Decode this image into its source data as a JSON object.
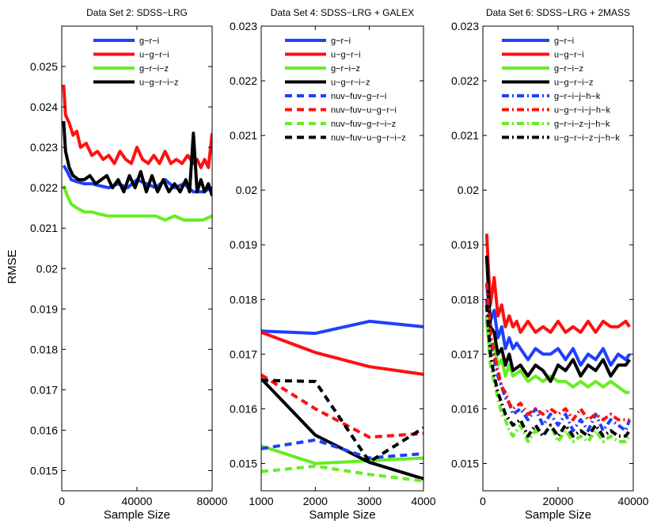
{
  "figure": {
    "ylabel": "RMSE"
  },
  "chart_data": [
    {
      "type": "line",
      "title": "Data Set 2: SDSS−LRG",
      "xlabel": "Sample Size",
      "ylabel": "RMSE",
      "xlim": [
        0,
        80000
      ],
      "ylim": [
        0.0145,
        0.026
      ],
      "xticks": [
        0,
        40000,
        80000
      ],
      "xtick_labels": [
        "0",
        "40000",
        "80000"
      ],
      "yticks": [
        0.015,
        0.016,
        0.017,
        0.018,
        0.019,
        0.02,
        0.021,
        0.022,
        0.023,
        0.024,
        0.025
      ],
      "ytick_labels": [
        "0.015",
        "0.016",
        "0.017",
        "0.018",
        "0.019",
        "0.02",
        "0.021",
        "0.022",
        "0.023",
        "0.024",
        "0.025"
      ],
      "legend_position": "top-right",
      "series": [
        {
          "name": "g−r−i",
          "color": "#1f3fff",
          "dash": "solid",
          "x": [
            1000,
            3000,
            5000,
            8000,
            12000,
            16000,
            20000,
            25000,
            30000,
            35000,
            40000,
            45000,
            50000,
            55000,
            60000,
            65000,
            70000,
            75000,
            80000
          ],
          "y": [
            0.02255,
            0.0224,
            0.0222,
            0.02215,
            0.0221,
            0.0221,
            0.02205,
            0.022,
            0.0221,
            0.022,
            0.0222,
            0.0221,
            0.022,
            0.0222,
            0.022,
            0.0221,
            0.0219,
            0.0219,
            0.022
          ]
        },
        {
          "name": "u−g−r−i",
          "color": "#ff1010",
          "dash": "solid",
          "x": [
            1000,
            2000,
            4000,
            6000,
            8000,
            10000,
            13000,
            16000,
            19000,
            22000,
            25000,
            28000,
            31000,
            34000,
            37000,
            40000,
            43000,
            46000,
            49000,
            52000,
            55000,
            58000,
            61000,
            64000,
            67000,
            70000,
            72000,
            74000,
            76000,
            78000,
            80000
          ],
          "y": [
            0.02455,
            0.0238,
            0.0236,
            0.0233,
            0.0234,
            0.023,
            0.0231,
            0.0228,
            0.0229,
            0.0227,
            0.0228,
            0.0226,
            0.0229,
            0.0227,
            0.0226,
            0.023,
            0.0227,
            0.0226,
            0.0228,
            0.0226,
            0.0229,
            0.0226,
            0.0227,
            0.0226,
            0.0228,
            0.0226,
            0.0227,
            0.0225,
            0.0227,
            0.0225,
            0.02335
          ]
        },
        {
          "name": "g−r−i−z",
          "color": "#66ee22",
          "dash": "solid",
          "x": [
            1000,
            3000,
            5000,
            8000,
            12000,
            16000,
            20000,
            25000,
            30000,
            35000,
            40000,
            45000,
            50000,
            55000,
            60000,
            65000,
            70000,
            75000,
            80000
          ],
          "y": [
            0.02205,
            0.0218,
            0.0216,
            0.0215,
            0.0214,
            0.0214,
            0.02135,
            0.0213,
            0.0213,
            0.0213,
            0.0213,
            0.0213,
            0.0213,
            0.0212,
            0.0213,
            0.0212,
            0.0212,
            0.0212,
            0.0213
          ]
        },
        {
          "name": "u−g−r−i−z",
          "color": "#000000",
          "dash": "solid",
          "x": [
            1000,
            2000,
            4000,
            6000,
            9000,
            12000,
            15000,
            18000,
            21000,
            24000,
            27000,
            30000,
            33000,
            36000,
            39000,
            42000,
            45000,
            48000,
            51000,
            54000,
            57000,
            60000,
            63000,
            66000,
            68000,
            70000,
            72000,
            74000,
            76000,
            78000,
            80000
          ],
          "y": [
            0.02365,
            0.0229,
            0.0225,
            0.0223,
            0.0222,
            0.0222,
            0.0223,
            0.0221,
            0.0222,
            0.0223,
            0.022,
            0.0222,
            0.0219,
            0.0223,
            0.022,
            0.0224,
            0.0219,
            0.0223,
            0.0219,
            0.0222,
            0.0219,
            0.0221,
            0.0219,
            0.0222,
            0.0219,
            0.02335,
            0.0219,
            0.0222,
            0.0219,
            0.0221,
            0.0218
          ]
        }
      ]
    },
    {
      "type": "line",
      "title": "Data Set 4: SDSS−LRG + GALEX",
      "xlabel": "Sample Size",
      "ylabel": "",
      "xlim": [
        1000,
        4000
      ],
      "ylim": [
        0.0145,
        0.023
      ],
      "xticks": [
        1000,
        2000,
        3000,
        4000
      ],
      "xtick_labels": [
        "1000",
        "2000",
        "3000",
        "4000"
      ],
      "yticks": [
        0.015,
        0.016,
        0.017,
        0.018,
        0.019,
        0.02,
        0.021,
        0.022,
        0.023
      ],
      "ytick_labels": [
        "0.015",
        "0.016",
        "0.017",
        "0.018",
        "0.019",
        "0.02",
        "0.021",
        "0.022",
        "0.023"
      ],
      "legend_position": "top-right",
      "series": [
        {
          "name": "g−r−i",
          "color": "#1f3fff",
          "dash": "solid",
          "x": [
            1000,
            2000,
            3000,
            4000
          ],
          "y": [
            0.01742,
            0.01738,
            0.0176,
            0.0175
          ]
        },
        {
          "name": "u−g−r−i",
          "color": "#ff1010",
          "dash": "solid",
          "x": [
            1000,
            2000,
            3000,
            4000
          ],
          "y": [
            0.0174,
            0.01703,
            0.01677,
            0.01663
          ]
        },
        {
          "name": "g−r−i−z",
          "color": "#66ee22",
          "dash": "solid",
          "x": [
            1000,
            2000,
            3000,
            4000
          ],
          "y": [
            0.01532,
            0.015,
            0.01505,
            0.0151
          ]
        },
        {
          "name": "u−g−r−i−z",
          "color": "#000000",
          "dash": "solid",
          "x": [
            1000,
            2000,
            3000,
            4000
          ],
          "y": [
            0.01655,
            0.01552,
            0.01502,
            0.01472
          ]
        },
        {
          "name": "nuv−fuv−g−r−i",
          "color": "#1f3fff",
          "dash": "dashed",
          "x": [
            1000,
            2000,
            3000,
            4000
          ],
          "y": [
            0.01527,
            0.01543,
            0.0151,
            0.01518
          ]
        },
        {
          "name": "nuv−fuv−u−g−r−i",
          "color": "#ff1010",
          "dash": "dashed",
          "x": [
            1000,
            2000,
            3000,
            4000
          ],
          "y": [
            0.01662,
            0.016,
            0.01548,
            0.01555
          ]
        },
        {
          "name": "nuv−fuv−g−r−i−z",
          "color": "#66ee22",
          "dash": "dashed",
          "x": [
            1000,
            2000,
            3000,
            4000
          ],
          "y": [
            0.01485,
            0.01495,
            0.0148,
            0.01468
          ]
        },
        {
          "name": "nuv−fuv−u−g−r−i−z",
          "color": "#000000",
          "dash": "dashed",
          "x": [
            1000,
            2000,
            3000,
            4000
          ],
          "y": [
            0.01652,
            0.0165,
            0.01503,
            0.01565
          ]
        }
      ]
    },
    {
      "type": "line",
      "title": "Data Set 6: SDSS−LRG + 2MASS",
      "xlabel": "Sample Size",
      "ylabel": "",
      "xlim": [
        0,
        40000
      ],
      "ylim": [
        0.0145,
        0.023
      ],
      "xticks": [
        0,
        20000,
        40000
      ],
      "xtick_labels": [
        "0",
        "20000",
        "40000"
      ],
      "yticks": [
        0.015,
        0.016,
        0.017,
        0.018,
        0.019,
        0.02,
        0.021,
        0.022,
        0.023
      ],
      "ytick_labels": [
        "0.015",
        "0.016",
        "0.017",
        "0.018",
        "0.019",
        "0.02",
        "0.021",
        "0.022",
        "0.023"
      ],
      "legend_position": "top-right",
      "series": [
        {
          "name": "g−r−i",
          "color": "#1f3fff",
          "dash": "solid",
          "x": [
            1000,
            2000,
            3000,
            4000,
            5000,
            6000,
            7000,
            8000,
            9000,
            10000,
            12000,
            14000,
            16000,
            18000,
            20000,
            22000,
            24000,
            26000,
            28000,
            30000,
            32000,
            34000,
            36000,
            38000,
            39000
          ],
          "y": [
            0.0183,
            0.0176,
            0.0178,
            0.0173,
            0.0175,
            0.0171,
            0.0173,
            0.0171,
            0.0172,
            0.0171,
            0.0169,
            0.0171,
            0.017,
            0.017,
            0.0171,
            0.0169,
            0.0171,
            0.0168,
            0.017,
            0.0169,
            0.0171,
            0.0168,
            0.017,
            0.0169,
            0.017
          ]
        },
        {
          "name": "u−g−r−i",
          "color": "#ff1010",
          "dash": "solid",
          "x": [
            1000,
            2000,
            3000,
            4000,
            5000,
            6000,
            7000,
            8000,
            9000,
            10000,
            12000,
            14000,
            16000,
            18000,
            20000,
            22000,
            24000,
            26000,
            28000,
            30000,
            32000,
            34000,
            36000,
            38000,
            39000
          ],
          "y": [
            0.0192,
            0.0179,
            0.0184,
            0.0177,
            0.0179,
            0.0175,
            0.0177,
            0.0175,
            0.0176,
            0.0174,
            0.0176,
            0.0174,
            0.0175,
            0.0174,
            0.0176,
            0.0174,
            0.0175,
            0.0174,
            0.0176,
            0.0174,
            0.0176,
            0.0175,
            0.0175,
            0.0176,
            0.0175
          ]
        },
        {
          "name": "g−r−i−z",
          "color": "#66ee22",
          "dash": "solid",
          "x": [
            1000,
            2000,
            3000,
            4000,
            5000,
            6000,
            7000,
            8000,
            10000,
            12000,
            14000,
            16000,
            18000,
            20000,
            22000,
            24000,
            26000,
            28000,
            30000,
            32000,
            34000,
            36000,
            38000,
            39000
          ],
          "y": [
            0.0176,
            0.017,
            0.0172,
            0.0168,
            0.0169,
            0.0166,
            0.0168,
            0.0166,
            0.0167,
            0.0165,
            0.0166,
            0.0165,
            0.0166,
            0.0165,
            0.0165,
            0.0164,
            0.0165,
            0.0164,
            0.0165,
            0.0164,
            0.0165,
            0.0164,
            0.0163,
            0.0163
          ]
        },
        {
          "name": "u−g−r−i−z",
          "color": "#000000",
          "dash": "solid",
          "x": [
            1000,
            2000,
            3000,
            4000,
            5000,
            6000,
            7000,
            8000,
            10000,
            12000,
            14000,
            16000,
            18000,
            20000,
            22000,
            24000,
            26000,
            28000,
            30000,
            32000,
            34000,
            36000,
            38000,
            39000
          ],
          "y": [
            0.0188,
            0.0175,
            0.0174,
            0.017,
            0.0171,
            0.0168,
            0.017,
            0.0167,
            0.0168,
            0.0166,
            0.0168,
            0.0167,
            0.0165,
            0.0168,
            0.0167,
            0.0169,
            0.0166,
            0.0168,
            0.0167,
            0.0169,
            0.0166,
            0.0168,
            0.0168,
            0.0169
          ]
        },
        {
          "name": "g−r−i−j−h−k",
          "color": "#1f3fff",
          "dash": "dashdot",
          "x": [
            1000,
            2000,
            3000,
            4000,
            5000,
            6000,
            7000,
            8000,
            10000,
            12000,
            14000,
            16000,
            18000,
            20000,
            22000,
            24000,
            26000,
            28000,
            30000,
            32000,
            34000,
            36000,
            38000,
            39000
          ],
          "y": [
            0.018,
            0.0172,
            0.0169,
            0.0166,
            0.0164,
            0.0162,
            0.0161,
            0.0159,
            0.016,
            0.0158,
            0.016,
            0.0157,
            0.0159,
            0.0157,
            0.0159,
            0.0156,
            0.0158,
            0.0156,
            0.0159,
            0.0156,
            0.0158,
            0.0157,
            0.0156,
            0.0158
          ]
        },
        {
          "name": "u−g−r−i−j−h−k",
          "color": "#ff1010",
          "dash": "dashdot",
          "x": [
            1000,
            2000,
            3000,
            4000,
            5000,
            6000,
            7000,
            8000,
            10000,
            12000,
            14000,
            16000,
            18000,
            20000,
            22000,
            24000,
            26000,
            28000,
            30000,
            32000,
            34000,
            36000,
            38000,
            39000
          ],
          "y": [
            0.0183,
            0.0174,
            0.017,
            0.0167,
            0.0164,
            0.0163,
            0.0161,
            0.016,
            0.0161,
            0.0159,
            0.016,
            0.0159,
            0.016,
            0.0159,
            0.016,
            0.0158,
            0.016,
            0.0158,
            0.0159,
            0.0158,
            0.0159,
            0.0158,
            0.0158,
            0.0158
          ]
        },
        {
          "name": "g−r−i−z−j−h−k",
          "color": "#66ee22",
          "dash": "dashdot",
          "x": [
            1000,
            2000,
            3000,
            4000,
            5000,
            6000,
            7000,
            8000,
            10000,
            12000,
            14000,
            16000,
            18000,
            20000,
            22000,
            24000,
            26000,
            28000,
            30000,
            32000,
            34000,
            36000,
            38000,
            39000
          ],
          "y": [
            0.0177,
            0.0168,
            0.0165,
            0.0162,
            0.0159,
            0.0158,
            0.0156,
            0.0155,
            0.0157,
            0.0154,
            0.0156,
            0.0155,
            0.0157,
            0.0154,
            0.0156,
            0.0154,
            0.0155,
            0.0154,
            0.0156,
            0.0154,
            0.0155,
            0.0154,
            0.0154,
            0.0155
          ]
        },
        {
          "name": "u−g−r−i−z−j−h−k",
          "color": "#000000",
          "dash": "dashdot",
          "x": [
            1000,
            2000,
            3000,
            4000,
            5000,
            6000,
            7000,
            8000,
            10000,
            12000,
            14000,
            16000,
            18000,
            20000,
            22000,
            24000,
            26000,
            28000,
            30000,
            32000,
            34000,
            36000,
            38000,
            39000
          ],
          "y": [
            0.0179,
            0.017,
            0.0166,
            0.0163,
            0.0161,
            0.0159,
            0.0158,
            0.0157,
            0.0158,
            0.0155,
            0.0157,
            0.0155,
            0.0157,
            0.0155,
            0.0157,
            0.0155,
            0.0156,
            0.0155,
            0.0157,
            0.0155,
            0.0156,
            0.0155,
            0.0155,
            0.0156
          ]
        }
      ]
    }
  ]
}
